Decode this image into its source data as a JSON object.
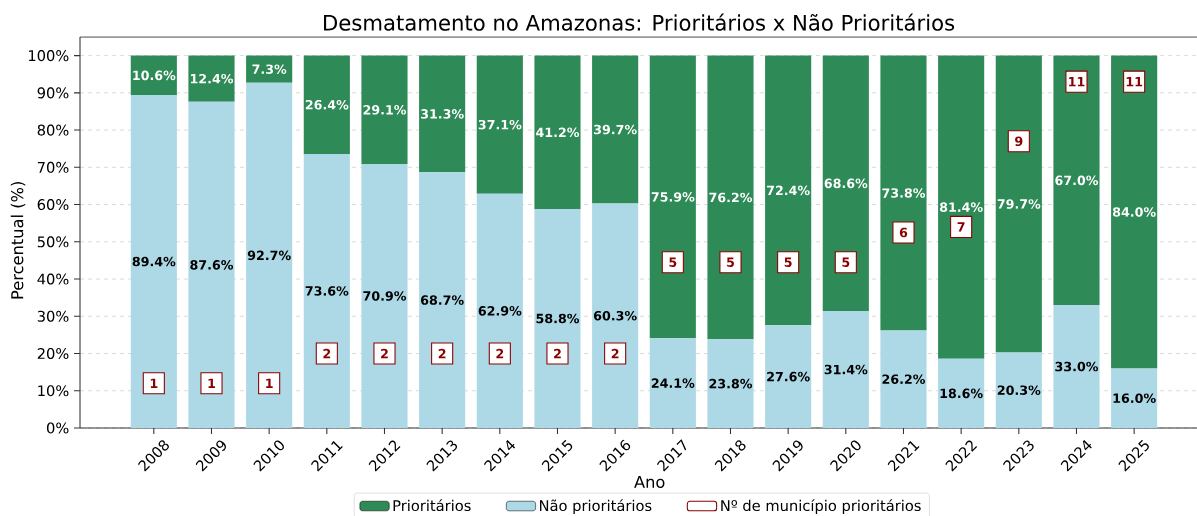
{
  "chart_data": {
    "type": "bar",
    "stacked": true,
    "title": "Desmatamento no Amazonas: Prioritários x Não Prioritários",
    "xlabel": "Ano",
    "ylabel": "Percentual (%)",
    "categories": [
      "2008",
      "2009",
      "2010",
      "2011",
      "2012",
      "2013",
      "2014",
      "2015",
      "2016",
      "2017",
      "2018",
      "2019",
      "2020",
      "2021",
      "2022",
      "2023",
      "2024",
      "2025"
    ],
    "series": [
      {
        "name": "Não prioritários",
        "color": "#add8e6",
        "values": [
          89.4,
          87.6,
          92.7,
          73.6,
          70.9,
          68.7,
          62.9,
          58.8,
          60.3,
          24.1,
          23.8,
          27.6,
          31.4,
          26.2,
          18.6,
          20.3,
          33.0,
          16.0
        ],
        "value_labels": [
          "89.4%",
          "87.6%",
          "92.7%",
          "73.6%",
          "70.9%",
          "68.7%",
          "62.9%",
          "58.8%",
          "60.3%",
          "24.1%",
          "23.8%",
          "27.6%",
          "31.4%",
          "26.2%",
          "18.6%",
          "20.3%",
          "33.0%",
          "16.0%"
        ]
      },
      {
        "name": "Prioritários",
        "color": "#2e8b57",
        "values": [
          10.6,
          12.4,
          7.3,
          26.4,
          29.1,
          31.3,
          37.1,
          41.2,
          39.7,
          75.9,
          76.2,
          72.4,
          68.6,
          73.8,
          81.4,
          79.7,
          67.0,
          84.0
        ],
        "value_labels": [
          "10.6%",
          "12.4%",
          "7.3%",
          "26.4%",
          "29.1%",
          "31.3%",
          "37.1%",
          "41.2%",
          "39.7%",
          "75.9%",
          "76.2%",
          "72.4%",
          "68.6%",
          "73.8%",
          "81.4%",
          "79.7%",
          "67.0%",
          "84.0%"
        ]
      },
      {
        "name": "Nº de município prioritários",
        "type": "scatter",
        "marker": "square",
        "color": "#8b0000",
        "values": [
          12,
          12,
          12,
          20,
          20,
          20,
          20,
          20,
          20,
          44.5,
          44.5,
          44.5,
          44.5,
          52.5,
          54,
          77,
          93,
          93
        ]
      }
    ],
    "annotations": [
      {
        "text": "1",
        "x": "2008",
        "y": 12
      },
      {
        "text": "1",
        "x": "2009",
        "y": 12
      },
      {
        "text": "1",
        "x": "2010",
        "y": 12
      },
      {
        "text": "2",
        "x": "2011",
        "y": 20
      },
      {
        "text": "2",
        "x": "2012",
        "y": 20
      },
      {
        "text": "2",
        "x": "2013",
        "y": 20
      },
      {
        "text": "2",
        "x": "2014",
        "y": 20
      },
      {
        "text": "2",
        "x": "2015",
        "y": 20
      },
      {
        "text": "2",
        "x": "2016",
        "y": 20
      },
      {
        "text": "5",
        "x": "2017",
        "y": 44.5
      },
      {
        "text": "5",
        "x": "2018",
        "y": 44.5
      },
      {
        "text": "5",
        "x": "2019",
        "y": 44.5
      },
      {
        "text": "5",
        "x": "2020",
        "y": 44.5
      },
      {
        "text": "6",
        "x": "2021",
        "y": 52.5
      },
      {
        "text": "7",
        "x": "2022",
        "y": 54
      },
      {
        "text": "9",
        "x": "2023",
        "y": 77
      },
      {
        "text": "11",
        "x": "2024",
        "y": 93
      },
      {
        "text": "11",
        "x": "2025",
        "y": 93
      }
    ],
    "ylim": [
      0,
      105
    ],
    "yticks": [
      {
        "value": 0,
        "label": "0%"
      },
      {
        "value": 10,
        "label": "10%"
      },
      {
        "value": 20,
        "label": "20%"
      },
      {
        "value": 30,
        "label": "30%"
      },
      {
        "value": 40,
        "label": "40%"
      },
      {
        "value": 50,
        "label": "50%"
      },
      {
        "value": 60,
        "label": "60%"
      },
      {
        "value": 70,
        "label": "70%"
      },
      {
        "value": 80,
        "label": "80%"
      },
      {
        "value": 90,
        "label": "90%"
      },
      {
        "value": 100,
        "label": "100%"
      }
    ],
    "grid": "y",
    "legend": "bottom"
  }
}
